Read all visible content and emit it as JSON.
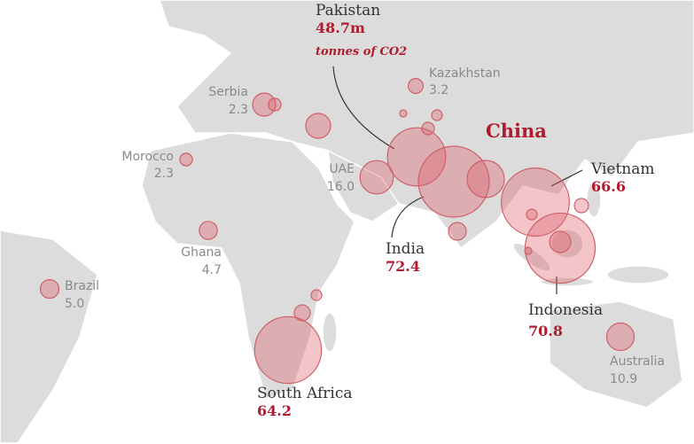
{
  "title": "China",
  "unit": "tonnes of CO2",
  "countries": [
    {
      "name": "Pakistan",
      "value": 48.7,
      "value_label": "48.7m"
    },
    {
      "name": "Kazakhstan",
      "value": 3.2
    },
    {
      "name": "Serbia",
      "value": 2.3
    },
    {
      "name": "Morocco",
      "value": 2.3
    },
    {
      "name": "UAE",
      "value": 16.0,
      "value_label": "16.0"
    },
    {
      "name": "Ghana",
      "value": 4.7
    },
    {
      "name": "Brazil",
      "value": 5.0,
      "value_label": "5.0"
    },
    {
      "name": "India",
      "value": 72.4
    },
    {
      "name": "Vietnam",
      "value": 66.6
    },
    {
      "name": "Indonesia",
      "value": 70.8
    },
    {
      "name": "South Africa",
      "value": 64.2
    },
    {
      "name": "Australia",
      "value": 10.9
    }
  ]
}
